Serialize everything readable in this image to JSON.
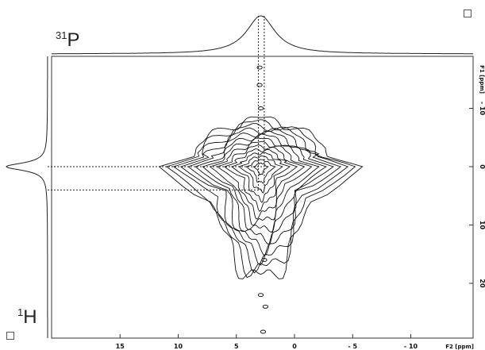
{
  "chart_data": {
    "type": "contour",
    "nuclei": {
      "f2_nucleus": "1H",
      "f1_nucleus": "31P"
    },
    "f2_axis": {
      "label": "F2 [ppm]",
      "ticks": [
        15,
        10,
        5,
        0,
        -5,
        -10
      ],
      "tick_labels": [
        "15",
        "10",
        "5",
        "0",
        "- 5",
        "- 10"
      ],
      "range": [
        19,
        -15
      ],
      "reversed": true
    },
    "f1_axis": {
      "label": "F1 [ppm]",
      "ticks": [
        -10,
        0,
        10,
        20
      ],
      "tick_labels": [
        "- 10",
        "0",
        "10",
        "20"
      ],
      "range": [
        -22,
        28
      ],
      "reversed": true
    },
    "projections": {
      "f2_top": {
        "peak_ppm": 2.9,
        "linewidth_ppm": 1.5
      },
      "f1_left": {
        "peak_ppm": 0.0,
        "linewidth_ppm": 0.8
      }
    },
    "cross_peak": {
      "f2_ppm": 2.9,
      "f1_ppm": 0.0
    },
    "contour_levels": 14,
    "guide_lines": [
      {
        "orientation": "horizontal",
        "f1_ppm": 0.0
      },
      {
        "orientation": "horizontal",
        "f1_ppm": 4.0
      },
      {
        "orientation": "vertical",
        "f2_ppm": 2.6
      },
      {
        "orientation": "vertical",
        "f2_ppm": 3.1
      }
    ],
    "grid": false
  }
}
